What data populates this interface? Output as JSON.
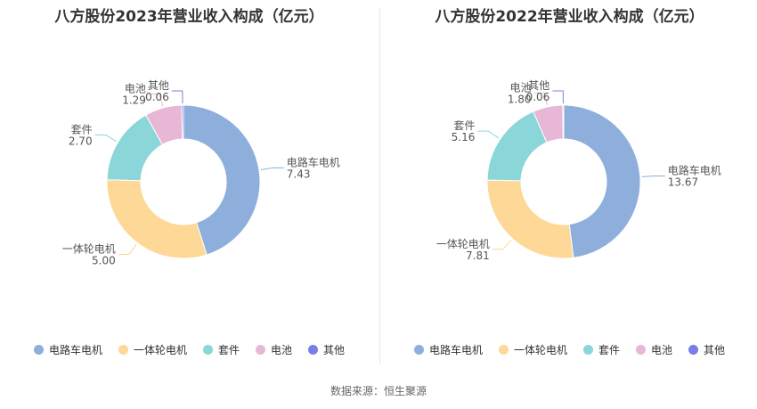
{
  "source": "数据来源：恒生聚源",
  "chart_data": [
    {
      "type": "pie",
      "title": "八方股份2023年营业收入构成（亿元）",
      "categories": [
        "电路车电机",
        "一体轮电机",
        "套件",
        "电池",
        "其他"
      ],
      "values": [
        7.43,
        5.0,
        2.7,
        1.29,
        0.06
      ],
      "value_labels": [
        "7.43",
        "5.00",
        "2.70",
        "1.29",
        "0.06"
      ],
      "colors": [
        "#8eaedc",
        "#fdd897",
        "#8ad6d8",
        "#e8b7d6",
        "#7a7de8"
      ],
      "legend": "bottom"
    },
    {
      "type": "pie",
      "title": "八方股份2022年营业收入构成（亿元）",
      "categories": [
        "电路车电机",
        "一体轮电机",
        "套件",
        "电池",
        "其他"
      ],
      "values": [
        13.67,
        7.81,
        5.16,
        1.8,
        0.06
      ],
      "value_labels": [
        "13.67",
        "7.81",
        "5.16",
        "1.80",
        "0.06"
      ],
      "colors": [
        "#8eaedc",
        "#fdd897",
        "#8ad6d8",
        "#e8b7d6",
        "#7a7de8"
      ],
      "legend": "bottom"
    }
  ]
}
